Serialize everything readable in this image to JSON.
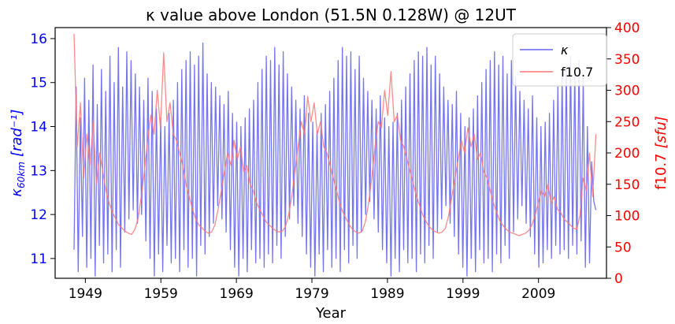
{
  "chart_data": {
    "type": "line",
    "title": "κ value above London (51.5N 0.128W) @ 12UT",
    "xlabel": "Year",
    "xlim": [
      1945.0,
      2018.0
    ],
    "x_ticks": [
      1949,
      1959,
      1969,
      1979,
      1989,
      1999,
      2009
    ],
    "y_left": {
      "label_main": "κ",
      "label_sub": "60km",
      "label_unit": "[rad⁻¹]",
      "lim": [
        10.55,
        16.25
      ],
      "ticks": [
        11,
        12,
        13,
        14,
        15,
        16
      ],
      "color": "#0000ff"
    },
    "y_right": {
      "label_main": "f10.7",
      "label_unit": "[sfu]",
      "lim": [
        0,
        400
      ],
      "ticks": [
        0,
        50,
        100,
        150,
        200,
        250,
        300,
        350,
        400
      ],
      "color": "#ff0000"
    },
    "legend": {
      "position": "top-right",
      "entries": [
        "κ",
        "f10.7"
      ]
    },
    "series": [
      {
        "name": "κ",
        "axis": "left",
        "color": "#6666ee",
        "x_start": 1947.5,
        "x_end": 2016.6,
        "x_step": 0.25,
        "values": [
          11.2,
          14.9,
          10.7,
          14.2,
          11.5,
          15.1,
          10.8,
          14.6,
          11.0,
          15.4,
          10.6,
          14.5,
          11.3,
          15.3,
          10.9,
          14.8,
          11.1,
          15.6,
          10.7,
          15.0,
          11.2,
          15.8,
          10.8,
          14.9,
          11.6,
          15.7,
          11.9,
          15.5,
          12.1,
          15.2,
          11.8,
          14.9,
          12.0,
          14.6,
          11.4,
          15.1,
          11.0,
          14.8,
          10.6,
          14.4,
          11.1,
          14.2,
          10.7,
          14.0,
          11.3,
          14.3,
          10.9,
          14.6,
          11.0,
          15.0,
          10.7,
          15.3,
          11.2,
          15.5,
          10.8,
          15.7,
          11.0,
          15.4,
          10.6,
          15.6,
          11.3,
          15.9,
          11.1,
          15.2,
          11.5,
          15.0,
          11.8,
          14.9,
          12.2,
          14.7,
          11.9,
          14.5,
          11.6,
          14.8,
          11.2,
          14.3,
          10.8,
          14.1,
          10.6,
          14.0,
          11.0,
          14.2,
          10.7,
          14.4,
          11.2,
          14.6,
          10.9,
          15.0,
          11.0,
          15.3,
          10.8,
          15.6,
          11.1,
          15.5,
          10.9,
          15.8,
          11.3,
          15.4,
          11.0,
          15.7,
          11.5,
          15.2,
          11.9,
          14.9,
          12.2,
          14.6,
          11.8,
          14.4,
          11.5,
          14.7,
          11.1,
          14.3,
          10.8,
          14.1,
          10.6,
          13.9,
          11.1,
          14.3,
          10.7,
          14.5,
          11.2,
          14.8,
          10.8,
          15.1,
          11.0,
          15.5,
          10.7,
          15.8,
          11.2,
          15.6,
          10.9,
          15.7,
          11.3,
          15.3,
          11.0,
          15.6,
          11.6,
          15.1,
          12.0,
          14.8,
          12.3,
          14.6,
          11.9,
          14.4,
          11.6,
          14.7,
          11.2,
          14.2,
          10.9,
          14.0,
          10.6,
          14.1,
          11.0,
          14.3,
          10.7,
          14.6,
          11.2,
          14.9,
          10.9,
          15.2,
          11.0,
          15.5,
          10.7,
          15.7,
          11.1,
          15.6,
          10.9,
          15.8,
          11.3,
          15.4,
          11.0,
          15.6,
          11.6,
          15.2,
          11.9,
          14.9,
          12.2,
          14.6,
          11.8,
          14.5,
          11.5,
          14.8,
          11.1,
          14.3,
          10.8,
          14.0,
          10.6,
          14.2,
          11.0,
          14.4,
          10.7,
          14.7,
          11.2,
          15.0,
          10.9,
          15.3,
          11.0,
          15.5,
          10.7,
          15.7,
          11.1,
          15.4,
          10.9,
          15.6,
          11.3,
          15.2,
          11.0,
          15.5,
          11.6,
          15.1,
          11.9,
          14.8,
          12.2,
          14.6,
          11.8,
          14.4,
          11.5,
          14.7,
          11.1,
          14.2,
          10.8,
          14.0,
          10.9,
          14.1,
          11.2,
          14.3,
          11.0,
          14.6,
          11.3,
          14.9,
          11.1,
          15.2,
          11.2,
          15.4,
          11.0,
          15.6,
          11.3,
          15.3,
          11.1,
          15.5,
          11.4,
          15.1,
          10.8,
          14.0,
          10.9,
          13.2,
          12.3,
          12.1
        ]
      },
      {
        "name": "f10.7",
        "axis": "right",
        "color": "#ff7777",
        "x_start": 1947.5,
        "x_end": 2016.6,
        "x_step": 0.5,
        "values": [
          390,
          210,
          280,
          160,
          230,
          180,
          250,
          150,
          200,
          170,
          140,
          120,
          105,
          95,
          85,
          80,
          75,
          72,
          70,
          78,
          95,
          130,
          170,
          220,
          260,
          230,
          300,
          240,
          360,
          250,
          280,
          230,
          220,
          200,
          180,
          150,
          130,
          110,
          95,
          85,
          80,
          75,
          72,
          74,
          85,
          110,
          140,
          170,
          200,
          180,
          220,
          190,
          210,
          170,
          180,
          150,
          140,
          120,
          110,
          100,
          90,
          85,
          80,
          76,
          74,
          75,
          82,
          100,
          130,
          170,
          210,
          250,
          230,
          290,
          250,
          280,
          230,
          250,
          210,
          200,
          180,
          160,
          140,
          120,
          105,
          95,
          85,
          78,
          74,
          72,
          75,
          90,
          120,
          160,
          210,
          250,
          240,
          300,
          260,
          330,
          250,
          260,
          220,
          210,
          190,
          170,
          150,
          130,
          115,
          100,
          90,
          82,
          77,
          74,
          72,
          74,
          80,
          100,
          130,
          160,
          190,
          220,
          200,
          240,
          210,
          230,
          190,
          200,
          170,
          160,
          140,
          120,
          105,
          92,
          84,
          78,
          74,
          72,
          70,
          68,
          70,
          72,
          76,
          85,
          100,
          120,
          140,
          130,
          150,
          120,
          130,
          110,
          105,
          95,
          90,
          85,
          80,
          78,
          100,
          160,
          140,
          200,
          130,
          230
        ]
      }
    ]
  }
}
